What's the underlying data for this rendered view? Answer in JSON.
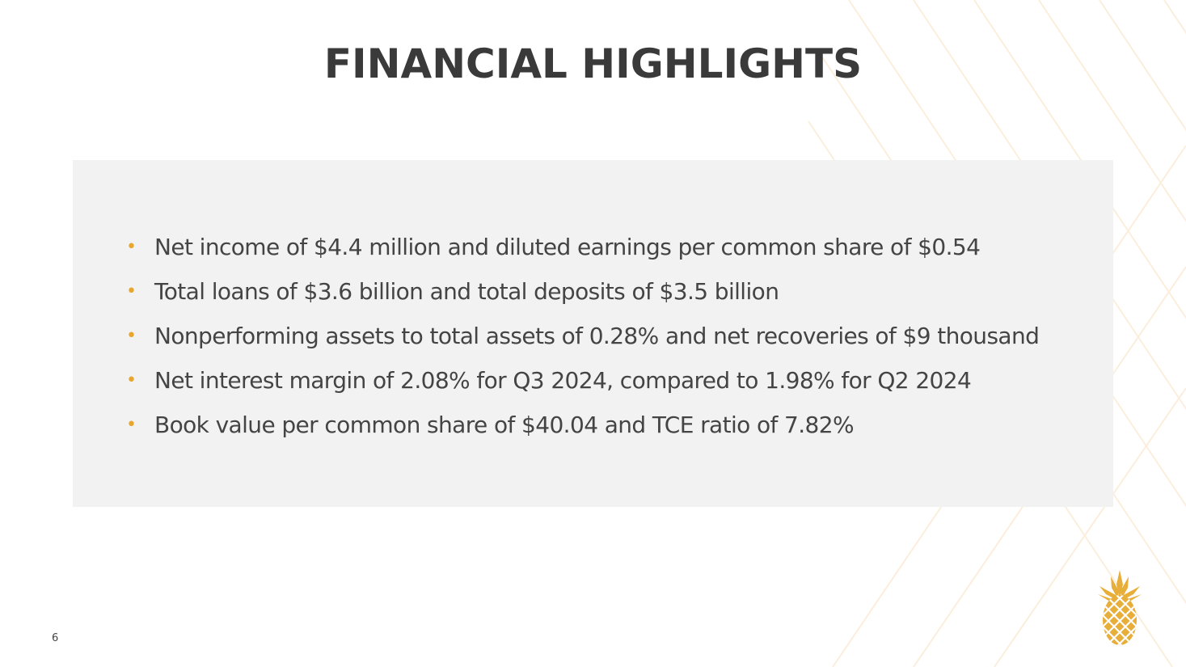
{
  "slide": {
    "title": "FINANCIAL HIGHLIGHTS",
    "bullets": [
      "Net income of $4.4 million and diluted earnings per common share of $0.54",
      "Total loans of $3.6 billion and total deposits of $3.5 billion",
      "Nonperforming assets to total assets of 0.28% and net recoveries of $9 thousand",
      "Net interest margin of 2.08% for Q3 2024, compared to 1.98% for Q2 2024",
      "Book value per common share of $40.04 and TCE ratio of 7.82%"
    ],
    "bullet_glyph": "•",
    "page_number": "6"
  },
  "colors": {
    "accent": "#e7a630",
    "title": "#3a3a3a",
    "panel": "#f2f2f2"
  },
  "icons": {
    "logo": "pineapple-logo"
  }
}
